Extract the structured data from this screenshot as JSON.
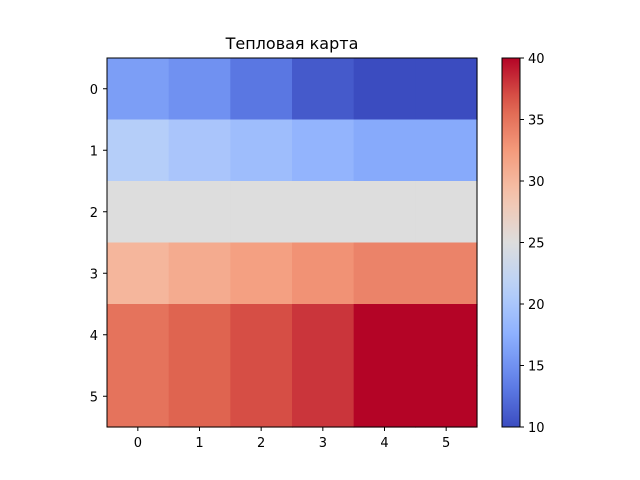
{
  "chart_data": {
    "type": "heatmap",
    "title": "Тепловая карта",
    "xlabel": "",
    "ylabel": "",
    "x_ticks": [
      "0",
      "1",
      "2",
      "3",
      "4",
      "5"
    ],
    "y_ticks": [
      "0",
      "1",
      "2",
      "3",
      "4",
      "5"
    ],
    "colormap": "coolwarm",
    "vmin": 10,
    "vmax": 40,
    "colorbar_ticks": [
      "10",
      "15",
      "20",
      "25",
      "30",
      "35",
      "40"
    ],
    "values": [
      [
        16,
        15,
        13,
        11,
        10,
        10
      ],
      [
        21,
        20,
        19,
        18,
        17,
        17
      ],
      [
        25,
        25,
        25,
        25,
        25,
        25
      ],
      [
        30,
        31,
        32,
        33,
        34,
        34
      ],
      [
        35,
        36,
        37,
        38,
        40,
        40
      ],
      [
        35,
        36,
        37,
        38,
        40,
        40
      ]
    ]
  }
}
